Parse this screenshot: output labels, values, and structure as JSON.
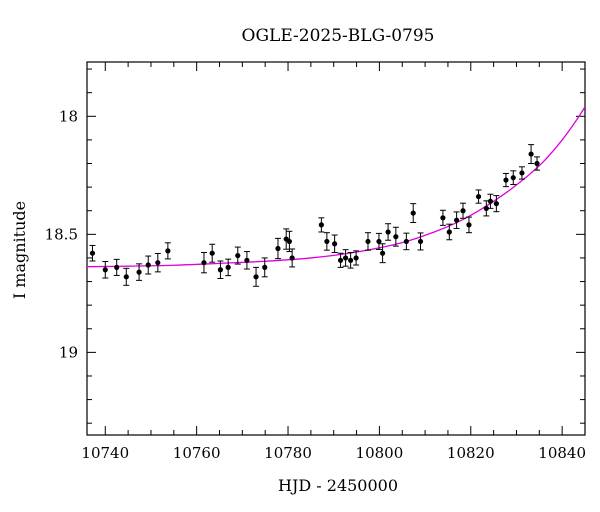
{
  "chart_data": {
    "type": "scatter",
    "title": "OGLE-2025-BLG-0795",
    "xlabel": "HJD - 2450000",
    "ylabel": "I magnitude",
    "xlim": [
      10736,
      10845
    ],
    "ylim": [
      19.35,
      17.77
    ],
    "y_inverted": true,
    "grid": false,
    "x_ticks": [
      10740,
      10760,
      10780,
      10800,
      10820,
      10840
    ],
    "y_ticks": [
      18,
      18.5,
      19
    ],
    "x_tick_labels": [
      "10740",
      "10760",
      "10780",
      "10800",
      "10820",
      "10840"
    ],
    "y_tick_labels": [
      "18",
      "18.5",
      "19"
    ],
    "series": [
      {
        "kind": "points_with_errorbars",
        "color": "#000000",
        "x": [
          10737.2,
          10740.0,
          10742.5,
          10744.6,
          10747.4,
          10749.4,
          10751.5,
          10753.7,
          10761.6,
          10763.4,
          10765.2,
          10766.9,
          10769.0,
          10771.0,
          10773.0,
          10774.9,
          10777.8,
          10779.6,
          10780.3,
          10780.9,
          10787.3,
          10788.5,
          10790.2,
          10791.5,
          10792.6,
          10793.7,
          10794.9,
          10797.5,
          10799.9,
          10800.7,
          10801.9,
          10803.6,
          10805.9,
          10807.4,
          10809.0,
          10813.9,
          10815.3,
          10816.9,
          10818.3,
          10819.6,
          10821.7,
          10823.4,
          10824.3,
          10825.6,
          10827.7,
          10829.3,
          10831.2,
          10833.2,
          10834.5
        ],
        "y": [
          18.58,
          18.65,
          18.64,
          18.68,
          18.66,
          18.63,
          18.62,
          18.57,
          18.62,
          18.58,
          18.65,
          18.64,
          18.59,
          18.61,
          18.68,
          18.64,
          18.56,
          18.52,
          18.53,
          18.6,
          18.46,
          18.53,
          18.54,
          18.61,
          18.6,
          18.61,
          18.6,
          18.53,
          18.53,
          18.58,
          18.49,
          18.51,
          18.53,
          18.41,
          18.53,
          18.43,
          18.49,
          18.44,
          18.4,
          18.46,
          18.34,
          18.39,
          18.36,
          18.37,
          18.27,
          18.26,
          18.24,
          18.16,
          18.2
        ],
        "yerr": [
          0.033,
          0.035,
          0.034,
          0.036,
          0.035,
          0.038,
          0.039,
          0.034,
          0.043,
          0.038,
          0.037,
          0.035,
          0.036,
          0.037,
          0.04,
          0.04,
          0.043,
          0.043,
          0.043,
          0.038,
          0.03,
          0.037,
          0.037,
          0.03,
          0.035,
          0.033,
          0.03,
          0.037,
          0.034,
          0.04,
          0.035,
          0.04,
          0.035,
          0.04,
          0.036,
          0.032,
          0.033,
          0.035,
          0.032,
          0.033,
          0.028,
          0.032,
          0.03,
          0.034,
          0.028,
          0.029,
          0.026,
          0.04,
          0.028
        ]
      },
      {
        "kind": "model_curve",
        "color": "#e000e0",
        "x": [
          10736,
          10745,
          10755,
          10765,
          10775,
          10785,
          10795,
          10805,
          10812,
          10818,
          10823,
          10828,
          10832,
          10836,
          10840,
          10843,
          10845
        ],
        "y": [
          18.637,
          18.635,
          18.631,
          18.623,
          18.614,
          18.6,
          18.575,
          18.535,
          18.49,
          18.44,
          18.385,
          18.32,
          18.26,
          18.19,
          18.1,
          18.02,
          17.96
        ]
      }
    ]
  }
}
